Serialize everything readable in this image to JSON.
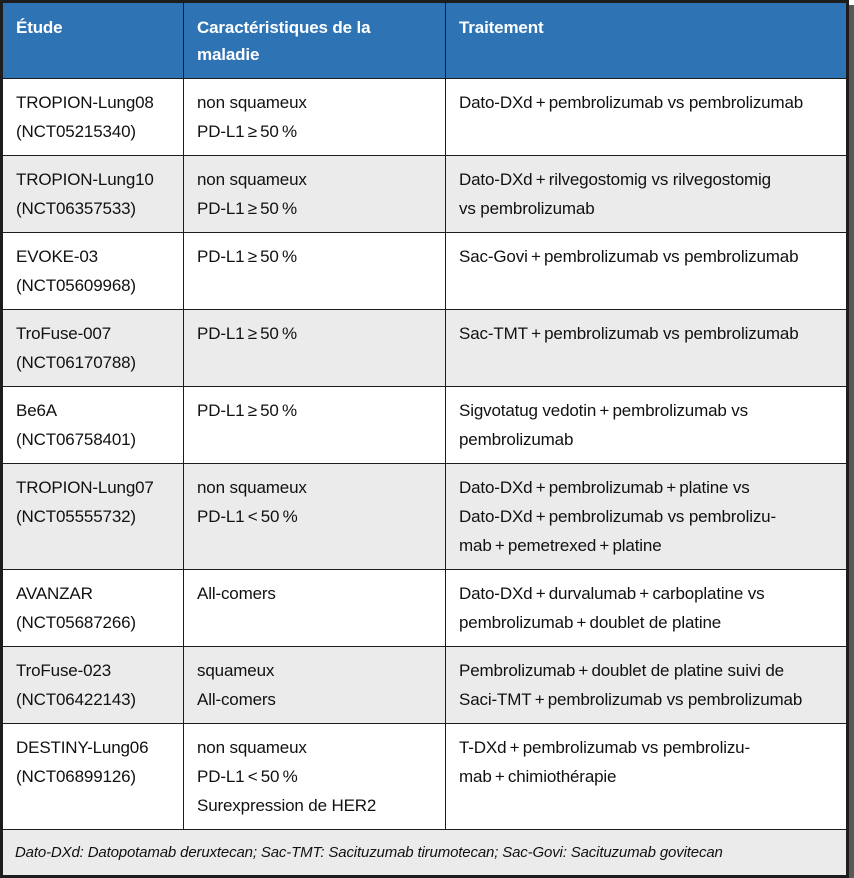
{
  "colors": {
    "header_bg": "#2e74b5",
    "header_text": "#ffffff",
    "row_bg": "#ffffff",
    "row_alt_bg": "#ebebeb",
    "border": "#1d1d1d",
    "outer_shadow": "#585858"
  },
  "table": {
    "columns": [
      "Étude",
      "Caractéristiques de la maladie",
      "Traitement"
    ],
    "rows": [
      {
        "study": "TROPION-Lung08\n(NCT05215340)",
        "disease": "non squameux\nPD-L1 ≥ 50 %",
        "treatment": "Dato-DXd + pembrolizumab vs pembrolizumab"
      },
      {
        "study": "TROPION-Lung10\n(NCT06357533)",
        "disease": "non squameux\nPD-L1 ≥ 50 %",
        "treatment": "Dato-DXd + rilvegostomig vs rilvegostomig\nvs pembrolizumab"
      },
      {
        "study": "EVOKE-03\n(NCT05609968)",
        "disease": "PD-L1 ≥ 50 %",
        "treatment": "Sac-Govi + pembrolizumab vs pembrolizumab"
      },
      {
        "study": "TroFuse-007\n(NCT06170788)",
        "disease": "PD-L1 ≥ 50 %",
        "treatment": "Sac-TMT + pembrolizumab vs pembrolizumab"
      },
      {
        "study": "Be6A\n(NCT06758401)",
        "disease": "PD-L1 ≥ 50 %",
        "treatment": "Sigvotatug vedotin + pembrolizumab vs\npembrolizumab"
      },
      {
        "study": "TROPION-Lung07\n(NCT05555732)",
        "disease": "non squameux\nPD-L1 < 50 %",
        "treatment": "Dato-DXd + pembrolizumab + platine vs\nDato-DXd + pembrolizumab vs pembrolizu-\nmab + pemetrexed + platine"
      },
      {
        "study": "AVANZAR\n(NCT05687266)",
        "disease": "All-comers",
        "treatment": "Dato-DXd + durvalumab + carboplatine vs\npembrolizumab + doublet de platine"
      },
      {
        "study": "TroFuse-023\n(NCT06422143)",
        "disease": "squameux\nAll-comers",
        "treatment": "Pembrolizumab + doublet de platine suivi de\nSaci-TMT + pembrolizumab vs pembrolizumab"
      },
      {
        "study": "DESTINY-Lung06\n(NCT06899126)",
        "disease": "non squameux\nPD-L1 < 50 %\nSurexpression de HER2",
        "treatment": "T-DXd + pembrolizumab vs pembrolizu-\nmab + chimiothérapie"
      }
    ],
    "footnote": "Dato-DXd: Datopotamab deruxtecan; Sac-TMT: Sacituzumab tirumotecan; Sac-Govi: Sacituzumab govitecan"
  }
}
